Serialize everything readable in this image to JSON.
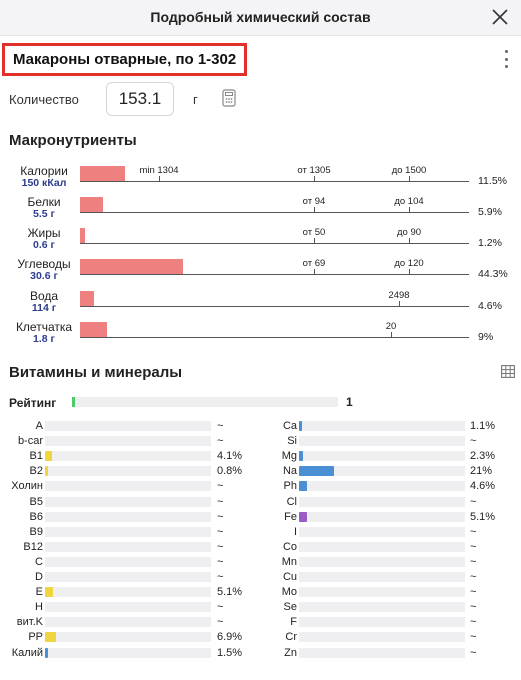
{
  "header": {
    "title": "Подробный химический состав"
  },
  "product": {
    "title": "Макароны отварные, по 1-302"
  },
  "quantity": {
    "label": "Количество",
    "value": "153.1",
    "unit": "г"
  },
  "macros": {
    "title": "Макронутриенты",
    "items": [
      {
        "name": "Калории",
        "amount": "150 кКал",
        "pct": "11.5%",
        "fill": 0.115,
        "marks": [
          {
            "label": "min 1304",
            "pos": 0.203
          },
          {
            "label": "от 1305",
            "pos": 0.602
          },
          {
            "label": "до 1500",
            "pos": 0.846
          }
        ]
      },
      {
        "name": "Белки",
        "amount": "5.5 г",
        "pct": "5.9%",
        "fill": 0.059,
        "marks": [
          {
            "label": "от 94",
            "pos": 0.602
          },
          {
            "label": "до 104",
            "pos": 0.846
          }
        ]
      },
      {
        "name": "Жиры",
        "amount": "0.6 г",
        "pct": "1.2%",
        "fill": 0.012,
        "marks": [
          {
            "label": "от 50",
            "pos": 0.602
          },
          {
            "label": "до 90",
            "pos": 0.846
          }
        ]
      },
      {
        "name": "Углеводы",
        "amount": "30.6 г",
        "pct": "44.3%",
        "fill": 0.264,
        "marks": [
          {
            "label": "от 69",
            "pos": 0.602
          },
          {
            "label": "до 120",
            "pos": 0.846
          }
        ]
      },
      {
        "name": "Вода",
        "amount": "114 г",
        "pct": "4.6%",
        "fill": 0.036,
        "marks": [
          {
            "label": "2498",
            "pos": 0.82
          }
        ]
      },
      {
        "name": "Клетчатка",
        "amount": "1.8 г",
        "pct": "9%",
        "fill": 0.069,
        "marks": [
          {
            "label": "20",
            "pos": 0.8
          }
        ]
      }
    ]
  },
  "vitamins": {
    "title": "Витамины и минералы",
    "rating_label": "Рейтинг",
    "rating_value": "1",
    "rating_fill": 0.012,
    "left": [
      {
        "name": "A",
        "value": "~",
        "fill": 0,
        "color": ""
      },
      {
        "name": "b-car",
        "value": "~",
        "fill": 0,
        "color": ""
      },
      {
        "name": "B1",
        "value": "4.1%",
        "fill": 0.041,
        "color": "#f0d440"
      },
      {
        "name": "B2",
        "value": "0.8%",
        "fill": 0.008,
        "color": "#f0d440"
      },
      {
        "name": "Холин",
        "value": "~",
        "fill": 0,
        "color": ""
      },
      {
        "name": "B5",
        "value": "~",
        "fill": 0,
        "color": ""
      },
      {
        "name": "B6",
        "value": "~",
        "fill": 0,
        "color": ""
      },
      {
        "name": "B9",
        "value": "~",
        "fill": 0,
        "color": ""
      },
      {
        "name": "B12",
        "value": "~",
        "fill": 0,
        "color": ""
      },
      {
        "name": "C",
        "value": "~",
        "fill": 0,
        "color": ""
      },
      {
        "name": "D",
        "value": "~",
        "fill": 0,
        "color": ""
      },
      {
        "name": "E",
        "value": "5.1%",
        "fill": 0.051,
        "color": "#f0d440"
      },
      {
        "name": "H",
        "value": "~",
        "fill": 0,
        "color": ""
      },
      {
        "name": "вит.K",
        "value": "~",
        "fill": 0,
        "color": ""
      },
      {
        "name": "PP",
        "value": "6.9%",
        "fill": 0.069,
        "color": "#f0d440"
      },
      {
        "name": "Калий",
        "value": "1.5%",
        "fill": 0.015,
        "color": "#4a8fd4"
      }
    ],
    "right": [
      {
        "name": "Ca",
        "value": "1.1%",
        "fill": 0.011,
        "color": "#4a8fd4"
      },
      {
        "name": "Si",
        "value": "~",
        "fill": 0,
        "color": ""
      },
      {
        "name": "Mg",
        "value": "2.3%",
        "fill": 0.023,
        "color": "#4a8fd4"
      },
      {
        "name": "Na",
        "value": "21%",
        "fill": 0.21,
        "color": "#4a8fd4"
      },
      {
        "name": "Ph",
        "value": "4.6%",
        "fill": 0.046,
        "color": "#4a8fd4"
      },
      {
        "name": "Cl",
        "value": "~",
        "fill": 0,
        "color": ""
      },
      {
        "name": "Fe",
        "value": "5.1%",
        "fill": 0.051,
        "color": "#9a5cc6"
      },
      {
        "name": "I",
        "value": "~",
        "fill": 0,
        "color": ""
      },
      {
        "name": "Co",
        "value": "~",
        "fill": 0,
        "color": ""
      },
      {
        "name": "Mn",
        "value": "~",
        "fill": 0,
        "color": ""
      },
      {
        "name": "Cu",
        "value": "~",
        "fill": 0,
        "color": ""
      },
      {
        "name": "Mo",
        "value": "~",
        "fill": 0,
        "color": ""
      },
      {
        "name": "Se",
        "value": "~",
        "fill": 0,
        "color": ""
      },
      {
        "name": "F",
        "value": "~",
        "fill": 0,
        "color": ""
      },
      {
        "name": "Cr",
        "value": "~",
        "fill": 0,
        "color": ""
      },
      {
        "name": "Zn",
        "value": "~",
        "fill": 0,
        "color": ""
      }
    ]
  }
}
